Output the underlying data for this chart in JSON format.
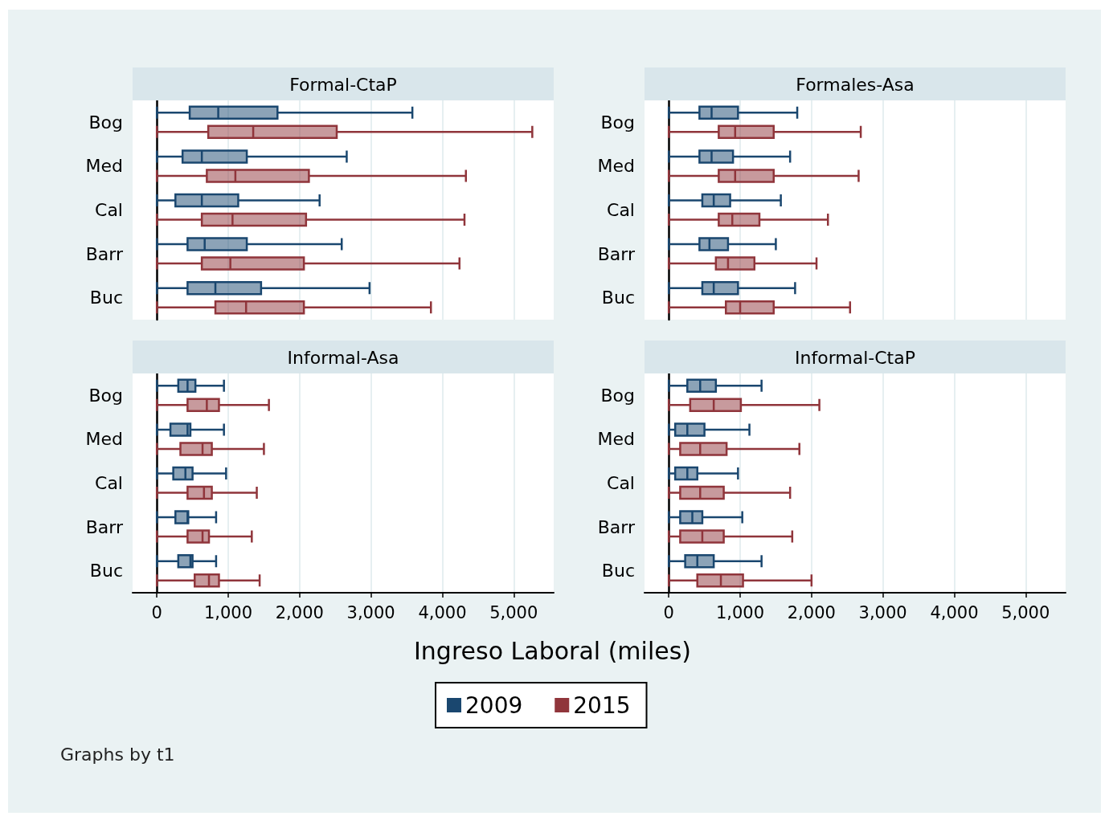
{
  "chart_data": [
    {
      "type": "box",
      "title": "Formal-CtaP",
      "categories": [
        "Bog",
        "Med",
        "Cal",
        "Barr",
        "Buc"
      ],
      "orientation": "horizontal",
      "xlim": [
        -340,
        5560
      ],
      "xticks": [
        {
          "value": 0,
          "label": null
        },
        {
          "value": 1000,
          "label": null
        },
        {
          "value": 2000,
          "label": null
        },
        {
          "value": 3000,
          "label": null
        },
        {
          "value": 4000,
          "label": null
        },
        {
          "value": 5000,
          "label": null
        }
      ],
      "grid": "x",
      "tick_labels": "y",
      "series": [
        {
          "color": "#1a476f",
          "boxes": [
            {
              "low": 0,
              "q1": 460,
              "median": 860,
              "q3": 1690,
              "high": 3580
            },
            {
              "low": 0,
              "q1": 360,
              "median": 630,
              "q3": 1260,
              "high": 2660
            },
            {
              "low": 0,
              "q1": 260,
              "median": 630,
              "q3": 1140,
              "high": 2280
            },
            {
              "low": 0,
              "q1": 430,
              "median": 670,
              "q3": 1260,
              "high": 2590
            },
            {
              "low": 0,
              "q1": 430,
              "median": 820,
              "q3": 1460,
              "high": 2980
            }
          ]
        },
        {
          "color": "#90353b",
          "boxes": [
            {
              "low": 0,
              "q1": 720,
              "median": 1350,
              "q3": 2520,
              "high": 5260
            },
            {
              "low": 0,
              "q1": 700,
              "median": 1100,
              "q3": 2130,
              "high": 4330
            },
            {
              "low": 0,
              "q1": 630,
              "median": 1060,
              "q3": 2090,
              "high": 4310
            },
            {
              "low": 0,
              "q1": 630,
              "median": 1030,
              "q3": 2060,
              "high": 4240
            },
            {
              "low": 0,
              "q1": 820,
              "median": 1250,
              "q3": 2060,
              "high": 3840
            }
          ]
        }
      ]
    },
    {
      "type": "box",
      "title": "Formales-Asa",
      "categories": [
        "Bog",
        "Med",
        "Cal",
        "Barr",
        "Buc"
      ],
      "orientation": "horizontal",
      "xlim": [
        -340,
        5560
      ],
      "xticks": [
        {
          "value": 0,
          "label": null
        },
        {
          "value": 1000,
          "label": null
        },
        {
          "value": 2000,
          "label": null
        },
        {
          "value": 3000,
          "label": null
        },
        {
          "value": 4000,
          "label": null
        },
        {
          "value": 5000,
          "label": null
        }
      ],
      "grid": "x",
      "tick_labels": "y",
      "series": [
        {
          "color": "#1a476f",
          "boxes": [
            {
              "low": 0,
              "q1": 430,
              "median": 600,
              "q3": 970,
              "high": 1800
            },
            {
              "low": 0,
              "q1": 430,
              "median": 600,
              "q3": 900,
              "high": 1700
            },
            {
              "low": 0,
              "q1": 470,
              "median": 630,
              "q3": 860,
              "high": 1570
            },
            {
              "low": 0,
              "q1": 430,
              "median": 570,
              "q3": 830,
              "high": 1500
            },
            {
              "low": 0,
              "q1": 470,
              "median": 630,
              "q3": 970,
              "high": 1770
            }
          ]
        },
        {
          "color": "#90353b",
          "boxes": [
            {
              "low": 0,
              "q1": 700,
              "median": 930,
              "q3": 1470,
              "high": 2690
            },
            {
              "low": 0,
              "q1": 700,
              "median": 930,
              "q3": 1470,
              "high": 2660
            },
            {
              "low": 0,
              "q1": 700,
              "median": 890,
              "q3": 1270,
              "high": 2230
            },
            {
              "low": 0,
              "q1": 660,
              "median": 830,
              "q3": 1200,
              "high": 2070
            },
            {
              "low": 0,
              "q1": 800,
              "median": 1000,
              "q3": 1470,
              "high": 2540
            }
          ]
        }
      ]
    },
    {
      "type": "box",
      "title": "Informal-Asa",
      "xlabel": "Ingreso Laboral (miles)",
      "legend": "bottom",
      "annotations": [
        "Graphs by t1"
      ],
      "categories": [
        "Bog",
        "Med",
        "Cal",
        "Barr",
        "Buc"
      ],
      "orientation": "horizontal",
      "xlim": [
        -340,
        5560
      ],
      "xticks": [
        0,
        {
          "value": 1000,
          "label": "1,000"
        },
        {
          "value": 2000,
          "label": "2,000"
        },
        {
          "value": 3000,
          "label": "3,000"
        },
        {
          "value": 4000,
          "label": "4,000"
        },
        {
          "value": 5000,
          "label": "5,000"
        }
      ],
      "grid": "x",
      "series": [
        {
          "name": "2009",
          "color": "#1a476f",
          "boxes": [
            {
              "low": 0,
              "q1": 300,
              "median": 430,
              "q3": 540,
              "high": 940
            },
            {
              "low": 0,
              "q1": 190,
              "median": 430,
              "q3": 470,
              "high": 940
            },
            {
              "low": 0,
              "q1": 230,
              "median": 400,
              "q3": 500,
              "high": 970
            },
            {
              "low": 0,
              "q1": 260,
              "median": 430,
              "q3": 440,
              "high": 830
            },
            {
              "low": 0,
              "q1": 300,
              "median": 470,
              "q3": 500,
              "high": 830
            }
          ]
        },
        {
          "name": "2015",
          "color": "#90353b",
          "boxes": [
            {
              "low": 0,
              "q1": 430,
              "median": 700,
              "q3": 870,
              "high": 1570
            },
            {
              "low": 0,
              "q1": 330,
              "median": 640,
              "q3": 770,
              "high": 1500
            },
            {
              "low": 0,
              "q1": 430,
              "median": 660,
              "q3": 770,
              "high": 1400
            },
            {
              "low": 0,
              "q1": 430,
              "median": 640,
              "q3": 730,
              "high": 1330
            },
            {
              "low": 0,
              "q1": 530,
              "median": 730,
              "q3": 870,
              "high": 1440
            }
          ]
        }
      ]
    },
    {
      "type": "box",
      "title": "Informal-CtaP",
      "categories": [
        "Bog",
        "Med",
        "Cal",
        "Barr",
        "Buc"
      ],
      "orientation": "horizontal",
      "xlim": [
        -340,
        5560
      ],
      "xticks": [
        0,
        {
          "value": 1000,
          "label": "1,000"
        },
        {
          "value": 2000,
          "label": "2,000"
        },
        {
          "value": 3000,
          "label": "3,000"
        },
        {
          "value": 4000,
          "label": "4,000"
        },
        {
          "value": 5000,
          "label": "5,000"
        }
      ],
      "grid": "x",
      "series": [
        {
          "color": "#1a476f",
          "boxes": [
            {
              "low": 0,
              "q1": 260,
              "median": 440,
              "q3": 660,
              "high": 1300
            },
            {
              "low": 0,
              "q1": 90,
              "median": 260,
              "q3": 500,
              "high": 1130
            },
            {
              "low": 0,
              "q1": 90,
              "median": 260,
              "q3": 400,
              "high": 970
            },
            {
              "low": 0,
              "q1": 160,
              "median": 330,
              "q3": 470,
              "high": 1030
            },
            {
              "low": 0,
              "q1": 230,
              "median": 400,
              "q3": 630,
              "high": 1300
            }
          ]
        },
        {
          "color": "#90353b",
          "boxes": [
            {
              "low": 0,
              "q1": 300,
              "median": 630,
              "q3": 1010,
              "high": 2110
            },
            {
              "low": 0,
              "q1": 160,
              "median": 440,
              "q3": 810,
              "high": 1830
            },
            {
              "low": 0,
              "q1": 160,
              "median": 440,
              "q3": 770,
              "high": 1700
            },
            {
              "low": 0,
              "q1": 160,
              "median": 470,
              "q3": 770,
              "high": 1730
            },
            {
              "low": 0,
              "q1": 400,
              "median": 730,
              "q3": 1040,
              "high": 2000
            }
          ]
        }
      ]
    }
  ]
}
